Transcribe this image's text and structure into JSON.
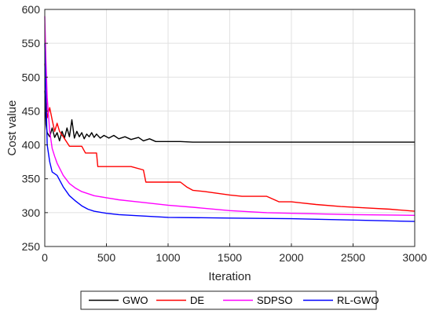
{
  "chart_data": {
    "type": "line",
    "title": "",
    "xlabel": "Iteration",
    "ylabel": "Cost value",
    "xlim": [
      0,
      3000
    ],
    "ylim": [
      250,
      600
    ],
    "xticks": [
      0,
      500,
      1000,
      1500,
      2000,
      2500,
      3000
    ],
    "yticks": [
      250,
      300,
      350,
      400,
      450,
      500,
      550,
      600
    ],
    "grid": true,
    "legend": "bottom-outside",
    "series": [
      {
        "name": "GWO",
        "color": "#000000",
        "points": [
          [
            0,
            480
          ],
          [
            10,
            430
          ],
          [
            20,
            418
          ],
          [
            40,
            412
          ],
          [
            60,
            425
          ],
          [
            80,
            411
          ],
          [
            100,
            418
          ],
          [
            120,
            406
          ],
          [
            140,
            420
          ],
          [
            160,
            410
          ],
          [
            180,
            425
          ],
          [
            200,
            412
          ],
          [
            220,
            437
          ],
          [
            240,
            410
          ],
          [
            260,
            420
          ],
          [
            280,
            412
          ],
          [
            300,
            418
          ],
          [
            320,
            409
          ],
          [
            340,
            416
          ],
          [
            360,
            412
          ],
          [
            380,
            418
          ],
          [
            400,
            411
          ],
          [
            420,
            416
          ],
          [
            450,
            410
          ],
          [
            480,
            414
          ],
          [
            520,
            410
          ],
          [
            560,
            414
          ],
          [
            600,
            409
          ],
          [
            650,
            412
          ],
          [
            700,
            408
          ],
          [
            760,
            411
          ],
          [
            800,
            406
          ],
          [
            850,
            409
          ],
          [
            900,
            405
          ],
          [
            1000,
            405
          ],
          [
            1100,
            405
          ],
          [
            1200,
            404
          ],
          [
            1300,
            404
          ],
          [
            1500,
            404
          ],
          [
            2000,
            404
          ],
          [
            2500,
            404
          ],
          [
            3000,
            404
          ]
        ]
      },
      {
        "name": "DE",
        "color": "#ff0000",
        "points": [
          [
            0,
            520
          ],
          [
            10,
            478
          ],
          [
            20,
            440
          ],
          [
            40,
            455
          ],
          [
            60,
            437
          ],
          [
            80,
            420
          ],
          [
            100,
            432
          ],
          [
            120,
            420
          ],
          [
            150,
            412
          ],
          [
            200,
            398
          ],
          [
            300,
            398
          ],
          [
            330,
            388
          ],
          [
            420,
            388
          ],
          [
            430,
            368
          ],
          [
            700,
            368
          ],
          [
            800,
            363
          ],
          [
            820,
            345
          ],
          [
            1100,
            345
          ],
          [
            1150,
            338
          ],
          [
            1200,
            333
          ],
          [
            1300,
            331
          ],
          [
            1500,
            326
          ],
          [
            1600,
            324
          ],
          [
            1800,
            324
          ],
          [
            1900,
            316
          ],
          [
            2000,
            316
          ],
          [
            2200,
            312
          ],
          [
            2400,
            309
          ],
          [
            2600,
            307
          ],
          [
            2800,
            305
          ],
          [
            3000,
            302
          ]
        ]
      },
      {
        "name": "SDPSO",
        "color": "#ff00ff",
        "points": [
          [
            0,
            590
          ],
          [
            10,
            520
          ],
          [
            20,
            470
          ],
          [
            40,
            420
          ],
          [
            60,
            395
          ],
          [
            80,
            383
          ],
          [
            100,
            373
          ],
          [
            150,
            355
          ],
          [
            200,
            343
          ],
          [
            250,
            336
          ],
          [
            300,
            331
          ],
          [
            400,
            325
          ],
          [
            500,
            322
          ],
          [
            600,
            319
          ],
          [
            800,
            315
          ],
          [
            1000,
            311
          ],
          [
            1200,
            308
          ],
          [
            1500,
            303
          ],
          [
            1800,
            300
          ],
          [
            2000,
            299
          ],
          [
            2500,
            297
          ],
          [
            3000,
            296
          ]
        ]
      },
      {
        "name": "RL-GWO",
        "color": "#0000ff",
        "points": [
          [
            0,
            550
          ],
          [
            10,
            470
          ],
          [
            20,
            400
          ],
          [
            40,
            375
          ],
          [
            60,
            360
          ],
          [
            100,
            355
          ],
          [
            150,
            338
          ],
          [
            200,
            325
          ],
          [
            250,
            317
          ],
          [
            300,
            310
          ],
          [
            350,
            305
          ],
          [
            400,
            302
          ],
          [
            500,
            299
          ],
          [
            600,
            297
          ],
          [
            800,
            295
          ],
          [
            1000,
            293
          ],
          [
            1500,
            292
          ],
          [
            2000,
            291
          ],
          [
            2500,
            289
          ],
          [
            3000,
            287
          ]
        ]
      }
    ]
  }
}
